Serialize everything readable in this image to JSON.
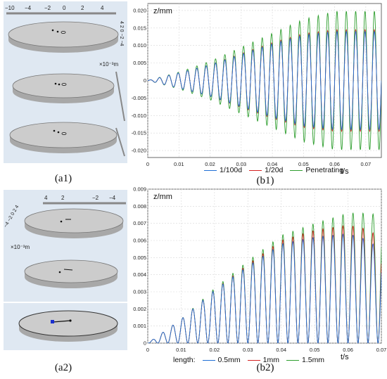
{
  "captions": {
    "a1": "(a1)",
    "b1": "(b1)",
    "a2": "(a2)",
    "b2": "(b2)"
  },
  "panel_a1": {
    "axis_ticks": [
      "−10",
      "−4",
      "−2",
      "0",
      "2",
      "4"
    ],
    "side_ticks": "4 2 0 −2 −4",
    "scale_note": "×10⁻³m",
    "colors": {
      "bg": "#dfe8f2",
      "disk_top": "#c9c9c9",
      "disk_edge": "#a8a8a8"
    }
  },
  "panel_a2": {
    "axis_ticks": [
      "4",
      "2",
      "−2",
      "−4"
    ],
    "side_ticks": "−4 −2 0 2 4",
    "scale_note": "×10⁻³m",
    "colors": {
      "bg": "#dfe8f2",
      "disk_top": "#c9c9c9",
      "disk_edge": "#a8a8a8",
      "marker": "#1a2fd0"
    }
  },
  "chart_data": [
    {
      "id": "b1",
      "type": "line",
      "ylabel": "z/mm",
      "xlabel": "t/s",
      "xlim": [
        0,
        0.075
      ],
      "ylim": [
        -0.022,
        0.022
      ],
      "x_ticks": [
        "0",
        "0.01",
        "0.02",
        "0.03",
        "0.04",
        "0.05",
        "0.06",
        "0.07"
      ],
      "x_tick_values": [
        0,
        0.01,
        0.02,
        0.03,
        0.04,
        0.05,
        0.06,
        0.07
      ],
      "y_ticks": [
        "0.020",
        "0.015",
        "0.010",
        "0.005",
        "0",
        "-0.005",
        "-0.010",
        "-0.015",
        "-0.020"
      ],
      "y_tick_values": [
        0.02,
        0.015,
        0.01,
        0.005,
        0,
        -0.005,
        -0.01,
        -0.015,
        -0.02
      ],
      "grid": true,
      "legend_position": "bottom",
      "oscillation_period_s": 0.003,
      "series": [
        {
          "name": "1/100d",
          "color": "#1f6fd6",
          "envelope_t": [
            0,
            0.01,
            0.02,
            0.03,
            0.04,
            0.05,
            0.06,
            0.075
          ],
          "envelope_amp": [
            0,
            0.0022,
            0.0045,
            0.0075,
            0.0105,
            0.013,
            0.014,
            0.014
          ]
        },
        {
          "name": "1/20d",
          "color": "#d42020",
          "envelope_t": [
            0,
            0.01,
            0.02,
            0.03,
            0.04,
            0.05,
            0.06,
            0.075
          ],
          "envelope_amp": [
            0,
            0.0022,
            0.0045,
            0.0077,
            0.0108,
            0.0134,
            0.0145,
            0.0145
          ]
        },
        {
          "name": "Penetrating",
          "color": "#2e9e2e",
          "envelope_t": [
            0,
            0.01,
            0.02,
            0.03,
            0.04,
            0.05,
            0.06,
            0.075
          ],
          "envelope_amp": [
            0,
            0.0024,
            0.0055,
            0.0095,
            0.0135,
            0.0175,
            0.0198,
            0.0198
          ]
        }
      ]
    },
    {
      "id": "b2",
      "type": "line",
      "ylabel": "z/mm",
      "xlabel": "t/s",
      "legend_title": "length:",
      "xlim": [
        0,
        0.07
      ],
      "ylim": [
        0,
        0.009
      ],
      "x_ticks": [
        "0",
        "0.01",
        "0.02",
        "0.03",
        "0.04",
        "0.05",
        "0.06",
        "0.07"
      ],
      "x_tick_values": [
        0,
        0.01,
        0.02,
        0.03,
        0.04,
        0.05,
        0.06,
        0.07
      ],
      "y_ticks": [
        "0.009",
        "0.008",
        "0.007",
        "0.006",
        "0.005",
        "0.004",
        "0.003",
        "0.002",
        "0.001",
        "0"
      ],
      "y_tick_values": [
        0.009,
        0.008,
        0.007,
        0.006,
        0.005,
        0.004,
        0.003,
        0.002,
        0.001,
        0
      ],
      "grid": true,
      "legend_position": "bottom",
      "oscillation_period_s": 0.003,
      "series": [
        {
          "name": "0.5mm",
          "color": "#1f6fd6",
          "envelope_t": [
            0,
            0.01,
            0.02,
            0.03,
            0.04,
            0.05,
            0.06,
            0.065,
            0.07
          ],
          "envelope_amp": [
            0,
            0.0014,
            0.0031,
            0.0045,
            0.0058,
            0.0062,
            0.0064,
            0.0061,
            0.0055
          ]
        },
        {
          "name": "1mm",
          "color": "#d42020",
          "envelope_t": [
            0,
            0.01,
            0.02,
            0.03,
            0.04,
            0.05,
            0.06,
            0.065,
            0.07
          ],
          "envelope_amp": [
            0,
            0.0014,
            0.0031,
            0.0046,
            0.006,
            0.0066,
            0.0069,
            0.0067,
            0.0062
          ]
        },
        {
          "name": "1.5mm",
          "color": "#2e9e2e",
          "envelope_t": [
            0,
            0.01,
            0.02,
            0.03,
            0.04,
            0.05,
            0.06,
            0.065,
            0.07
          ],
          "envelope_amp": [
            0,
            0.0014,
            0.0032,
            0.0048,
            0.0063,
            0.007,
            0.0076,
            0.0076,
            0.0075
          ]
        }
      ]
    }
  ]
}
